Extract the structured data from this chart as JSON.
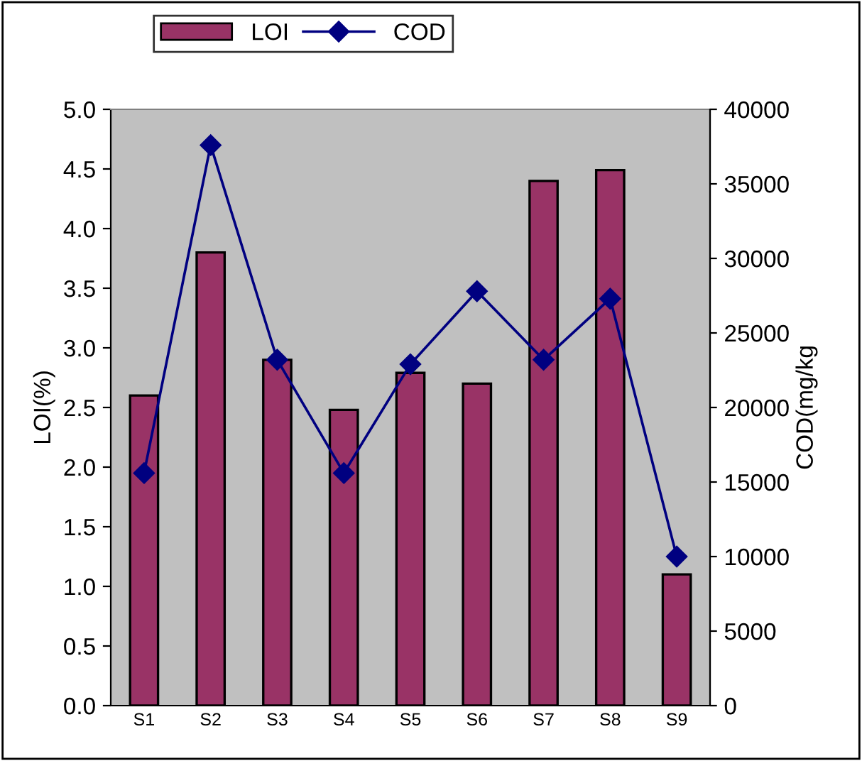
{
  "chart_data": {
    "type": "bar",
    "ylabel": "LOI(%)",
    "y2label": "COD(mg/kg",
    "categories": [
      "S1",
      "S2",
      "S3",
      "S4",
      "S5",
      "S6",
      "S7",
      "S8",
      "S9"
    ],
    "series": [
      {
        "name": "LOI",
        "color": "#993366",
        "values": [
          2.6,
          3.8,
          2.9,
          2.48,
          2.79,
          2.7,
          4.4,
          4.49,
          1.1
        ]
      },
      {
        "name": "COD",
        "type": "line",
        "axis": "y2",
        "color": "#000080",
        "marker": "diamond",
        "values": [
          15600,
          37600,
          23200,
          15600,
          22900,
          27800,
          23200,
          27300,
          10000
        ]
      }
    ],
    "ylim": [
      0,
      5
    ],
    "yticks": [
      {
        "value": 0,
        "label": "0.0"
      },
      {
        "value": 0.5,
        "label": "0.5"
      },
      {
        "value": 1,
        "label": "1.0"
      },
      {
        "value": 1.5,
        "label": "1.5"
      },
      {
        "value": 2,
        "label": "2.0"
      },
      {
        "value": 2.5,
        "label": "2.5"
      },
      {
        "value": 3,
        "label": "3.0"
      },
      {
        "value": 3.5,
        "label": "3.5"
      },
      {
        "value": 4,
        "label": "4.0"
      },
      {
        "value": 4.5,
        "label": "4.5"
      },
      {
        "value": 5,
        "label": "5.0"
      }
    ],
    "y2lim": [
      0,
      40000
    ],
    "y2ticks": [
      0,
      5000,
      10000,
      15000,
      20000,
      25000,
      30000,
      35000,
      40000
    ],
    "grid": false,
    "legend": "top"
  }
}
